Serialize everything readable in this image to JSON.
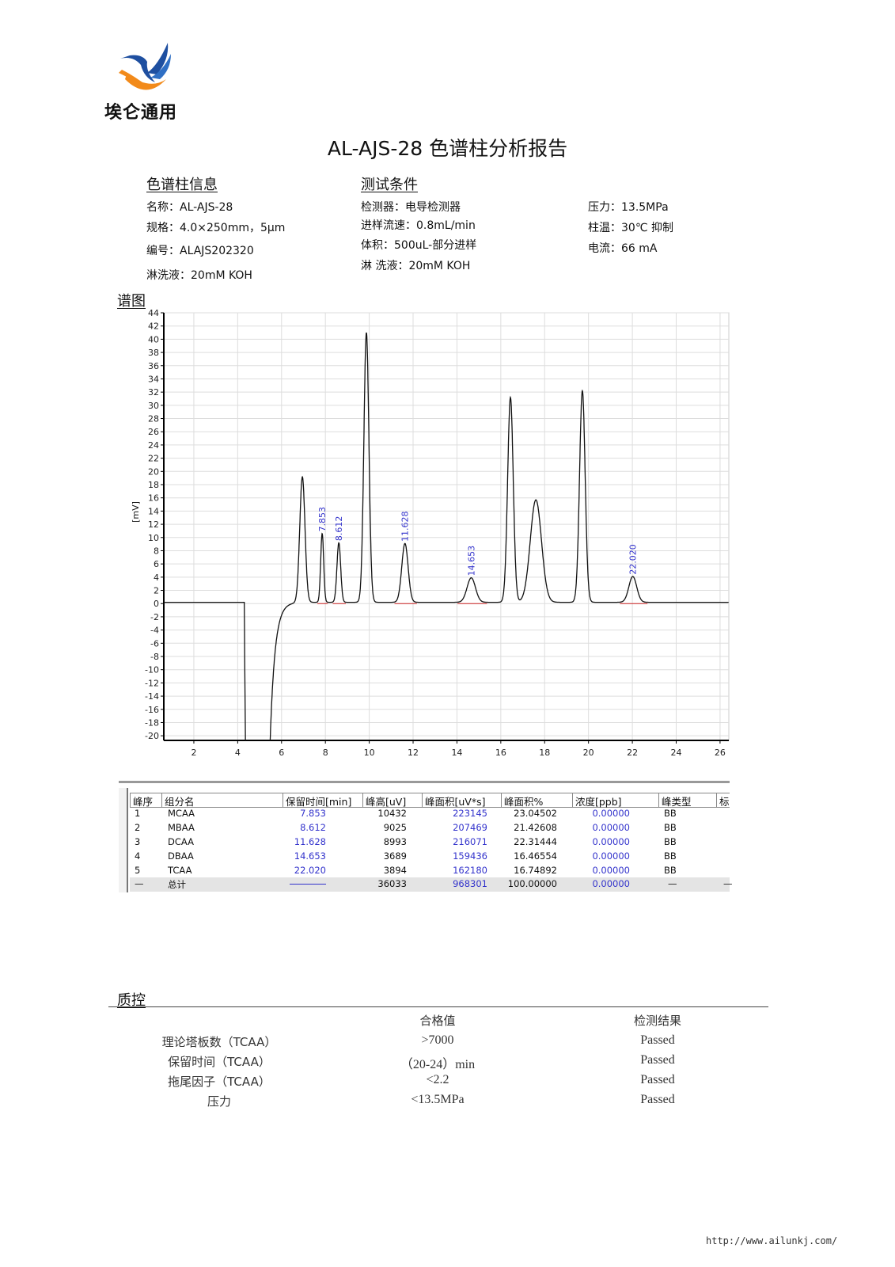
{
  "logo": {
    "company": "埃仑通用",
    "colors": {
      "blue": "#1e4fa0",
      "orange": "#f28a1a"
    }
  },
  "title": "AL-AJS-28 色谱柱分析报告",
  "column_info": {
    "heading": "色谱柱信息",
    "name": "名称：AL-AJS-28",
    "spec": "规格：4.0×250mm，5μm",
    "serial": "编号：ALAJS202320",
    "eluent": "淋洗液：20mM KOH"
  },
  "test_conditions": {
    "heading": "测试条件",
    "detector": "检测器：电导检测器",
    "flow_rate": "进样流速：0.8mL/min",
    "volume": "体积：500uL-部分进样",
    "eluent": "淋 洗液：20mM KOH",
    "pressure": "压力：13.5MPa",
    "temperature": "柱温：30℃ 抑制",
    "current": "电流：66 mA"
  },
  "chromatogram_heading": "谱图",
  "chart_data": {
    "type": "line",
    "title": "",
    "xlabel": "",
    "ylabel": "[mV]",
    "xlim": [
      0.63,
      26.4
    ],
    "ylim": [
      -20.7,
      44
    ],
    "xticks": [
      2,
      4,
      6,
      8,
      10,
      12,
      14,
      16,
      18,
      20,
      22,
      24,
      26
    ],
    "yticks": [
      -20,
      -18,
      -16,
      -14,
      -12,
      -10,
      -8,
      -6,
      -4,
      -2,
      0,
      2,
      4,
      6,
      8,
      10,
      12,
      14,
      16,
      18,
      20,
      22,
      24,
      26,
      28,
      30,
      32,
      34,
      36,
      38,
      40,
      42,
      44
    ],
    "grid": true,
    "baseline_mV": 0.2,
    "water_dip": {
      "start_min": 4.3,
      "end_min": 5.45,
      "min_mV": -30
    },
    "peaks": [
      {
        "rt": 6.95,
        "height": 19.0,
        "fwhm": 0.28,
        "label": ""
      },
      {
        "rt": 7.853,
        "height": 10.4,
        "fwhm": 0.16,
        "label": "7.853"
      },
      {
        "rt": 8.612,
        "height": 9.0,
        "fwhm": 0.2,
        "label": "8.612"
      },
      {
        "rt": 9.87,
        "height": 40.8,
        "fwhm": 0.27,
        "label": ""
      },
      {
        "rt": 11.628,
        "height": 8.9,
        "fwhm": 0.34,
        "label": "11.628"
      },
      {
        "rt": 14.653,
        "height": 3.7,
        "fwhm": 0.45,
        "label": "14.653"
      },
      {
        "rt": 16.44,
        "height": 31.0,
        "fwhm": 0.3,
        "label": ""
      },
      {
        "rt": 17.6,
        "height": 15.5,
        "fwhm": 0.6,
        "label": ""
      },
      {
        "rt": 19.72,
        "height": 32.0,
        "fwhm": 0.3,
        "label": ""
      },
      {
        "rt": 22.02,
        "height": 3.9,
        "fwhm": 0.42,
        "label": "22.020"
      }
    ],
    "colors": {
      "trace": "#111111",
      "label": "#3333cc",
      "integration_baseline": "#cc2222",
      "grid": "#dddddd"
    }
  },
  "results_table": {
    "headers": [
      "峰序",
      "组分名",
      "保留时间[min]",
      "峰高[uV]",
      "峰面积[uV*s]",
      "峰面积%",
      "浓度[ppb]",
      "峰类型",
      "标"
    ],
    "rows": [
      [
        "1",
        "MCAA",
        "7.853",
        "10432",
        "223145",
        "23.04502",
        "0.00000",
        "BB"
      ],
      [
        "2",
        "MBAA",
        "8.612",
        "9025",
        "207469",
        "21.42608",
        "0.00000",
        "BB"
      ],
      [
        "3",
        "DCAA",
        "11.628",
        "8993",
        "216071",
        "22.31444",
        "0.00000",
        "BB"
      ],
      [
        "4",
        "DBAA",
        "14.653",
        "3689",
        "159436",
        "16.46554",
        "0.00000",
        "BB"
      ],
      [
        "5",
        "TCAA",
        "22.020",
        "3894",
        "162180",
        "16.74892",
        "0.00000",
        "BB"
      ]
    ],
    "total": {
      "index": "—",
      "label": "总计",
      "height": "36033",
      "area": "968301",
      "area_pct": "100.00000",
      "conc": "0.00000",
      "type": "—",
      "std": "—"
    }
  },
  "qc": {
    "heading": "质控",
    "headers": {
      "criteria": "合格值",
      "result": "检测结果"
    },
    "rows": [
      {
        "item": "理论塔板数（TCAA）",
        "criteria": ">7000",
        "result": "Passed"
      },
      {
        "item": "保留时间（TCAA）",
        "criteria": "（20-24）min",
        "result": "Passed"
      },
      {
        "item": "拖尾因子（TCAA）",
        "criteria": "<2.2",
        "result": "Passed"
      },
      {
        "item": "压力",
        "criteria": "<13.5MPa",
        "result": "Passed"
      }
    ]
  },
  "footer_url": "http://www.ailunkj.com/"
}
